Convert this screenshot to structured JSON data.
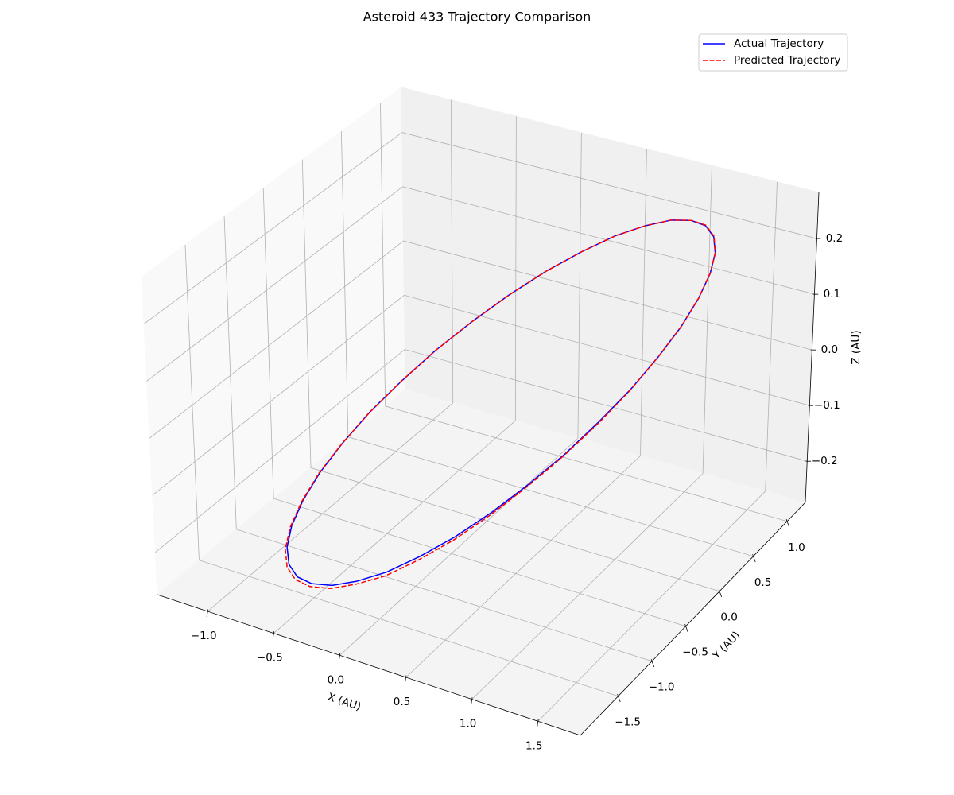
{
  "chart_data": {
    "type": "line3d",
    "title": "Asteroid 433 Trajectory Comparison",
    "xlabel": "X (AU)",
    "ylabel": "Y (AU)",
    "zlabel": "Z (AU)",
    "xlim": [
      -1.38,
      1.82
    ],
    "ylim": [
      -2.06,
      1.27
    ],
    "zlim": [
      -0.274,
      0.283
    ],
    "xticks": [
      {
        "value": -1.0,
        "label": "−1.0"
      },
      {
        "value": -0.5,
        "label": "−0.5"
      },
      {
        "value": 0,
        "label": "0.0"
      },
      {
        "value": 0.5,
        "label": "0.5"
      },
      {
        "value": 1.0,
        "label": "1.0"
      },
      {
        "value": 1.5,
        "label": "1.5"
      }
    ],
    "yticks": [
      {
        "value": -1.5,
        "label": "−1.5"
      },
      {
        "value": -1.0,
        "label": "−1.0"
      },
      {
        "value": -0.5,
        "label": "−0.5"
      },
      {
        "value": 0,
        "label": "0.0"
      },
      {
        "value": 0.5,
        "label": "0.5"
      },
      {
        "value": 1.0,
        "label": "1.0"
      }
    ],
    "zticks": [
      {
        "value": -0.2,
        "label": "−0.2"
      },
      {
        "value": -0.1,
        "label": "−0.1"
      },
      {
        "value": 0,
        "label": "0.0"
      },
      {
        "value": 0.1,
        "label": "0.1"
      },
      {
        "value": 0.2,
        "label": "0.2"
      }
    ],
    "grid": true,
    "legend": "upper right",
    "series": [
      {
        "name": "Actual Trajectory",
        "color": "#0000ff",
        "linestyle": "solid",
        "x": [
          1.43,
          1.532,
          1.597,
          1.624,
          1.611,
          1.56,
          1.471,
          1.348,
          1.194,
          1.014,
          0.813,
          0.598,
          0.374,
          0.149,
          -0.07,
          -0.277,
          -0.465,
          -0.629,
          -0.764,
          -0.866,
          -0.931,
          -0.958,
          -0.945,
          -0.894,
          -0.805,
          -0.682,
          -0.528,
          -0.348,
          -0.147,
          0.068,
          0.292,
          0.517,
          0.736,
          0.943,
          1.131,
          1.295,
          1.43
        ],
        "y": [
          0.585,
          0.341,
          0.075,
          -0.205,
          -0.492,
          -0.775,
          -1.048,
          -1.3,
          -1.525,
          -1.716,
          -1.867,
          -1.973,
          -2.032,
          -2.04,
          -1.999,
          -1.91,
          -1.774,
          -1.597,
          -1.383,
          -1.139,
          -0.873,
          -0.593,
          -0.306,
          -0.023,
          0.25,
          0.502,
          0.727,
          0.918,
          1.069,
          1.175,
          1.234,
          1.242,
          1.201,
          1.112,
          0.976,
          0.799,
          0.585
        ],
        "z": [
          0.228,
          0.225,
          0.215,
          0.198,
          0.176,
          0.148,
          0.117,
          0.081,
          0.044,
          0.005,
          -0.034,
          -0.071,
          -0.107,
          -0.138,
          -0.166,
          -0.188,
          -0.205,
          -0.215,
          -0.218,
          -0.215,
          -0.205,
          -0.188,
          -0.166,
          -0.138,
          -0.107,
          -0.071,
          -0.034,
          0.005,
          0.044,
          0.081,
          0.117,
          0.148,
          0.176,
          0.198,
          0.215,
          0.225,
          0.228
        ]
      },
      {
        "name": "Predicted Trajectory",
        "color": "#ff0000",
        "linestyle": "dashed",
        "x": [
          1.431,
          1.533,
          1.598,
          1.626,
          1.613,
          1.562,
          1.473,
          1.349,
          1.194,
          1.013,
          0.811,
          0.594,
          0.368,
          0.141,
          -0.078,
          -0.288,
          -0.478,
          -0.642,
          -0.777,
          -0.877,
          -0.94,
          -0.964,
          -0.949,
          -0.896,
          -0.806,
          -0.682,
          -0.527,
          -0.347,
          -0.146,
          0.069,
          0.293,
          0.518,
          0.737,
          0.944,
          1.132,
          1.296,
          1.431
        ],
        "y": [
          0.586,
          0.342,
          0.076,
          -0.204,
          -0.491,
          -0.775,
          -1.049,
          -1.302,
          -1.528,
          -1.721,
          -1.874,
          -1.982,
          -2.041,
          -2.049,
          -2.007,
          -1.917,
          -1.78,
          -1.601,
          -1.385,
          -1.14,
          -0.873,
          -0.592,
          -0.305,
          -0.022,
          0.251,
          0.503,
          0.728,
          0.919,
          1.07,
          1.176,
          1.235,
          1.243,
          1.202,
          1.113,
          0.977,
          0.8,
          0.586
        ],
        "z": [
          0.229,
          0.226,
          0.216,
          0.199,
          0.177,
          0.148,
          0.116,
          0.08,
          0.042,
          0.002,
          -0.038,
          -0.076,
          -0.113,
          -0.143,
          -0.171,
          -0.193,
          -0.21,
          -0.22,
          -0.222,
          -0.218,
          -0.207,
          -0.189,
          -0.167,
          -0.139,
          -0.107,
          -0.071,
          -0.034,
          0.005,
          0.044,
          0.081,
          0.117,
          0.148,
          0.176,
          0.198,
          0.216,
          0.226,
          0.229
        ]
      }
    ]
  }
}
